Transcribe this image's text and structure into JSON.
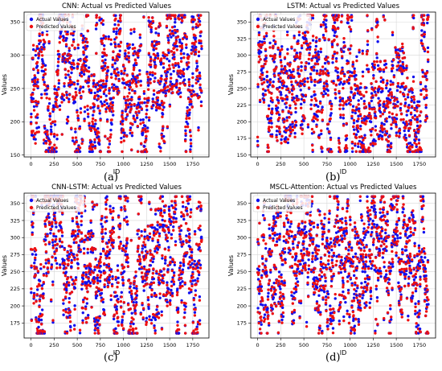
{
  "colors": {
    "actual": "#1010ee",
    "predicted": "#ee1010",
    "grid": "#d8d8d8",
    "frame": "#000000"
  },
  "chart_data": [
    {
      "type": "scatter",
      "panel": "(a)",
      "title": "CNN: Actual vs Predicted Values",
      "xlabel": "ID",
      "ylabel": "Values",
      "xlim": [
        -75,
        1925
      ],
      "ylim": [
        147,
        365
      ],
      "xticks": [
        0,
        250,
        500,
        750,
        1000,
        1250,
        1500,
        1750
      ],
      "yticks": [
        150,
        200,
        250,
        300,
        350
      ],
      "grid": true,
      "legend_position": "top-left",
      "n_points": 1848,
      "value_range": [
        155,
        360
      ],
      "series": [
        {
          "name": "Actual Values",
          "color": "#1010ee"
        },
        {
          "name": "Predicted Values",
          "color": "#ee1010"
        }
      ]
    },
    {
      "type": "scatter",
      "panel": "(b)",
      "title": "LSTM: Actual vs Predicted Values",
      "xlabel": "ID",
      "ylabel": "Values",
      "xlim": [
        -75,
        1925
      ],
      "ylim": [
        147,
        365
      ],
      "xticks": [
        0,
        250,
        500,
        750,
        1000,
        1250,
        1500,
        1750
      ],
      "yticks": [
        150,
        175,
        200,
        225,
        250,
        275,
        300,
        325,
        350
      ],
      "grid": true,
      "legend_position": "top-left",
      "n_points": 1848,
      "value_range": [
        155,
        360
      ],
      "series": [
        {
          "name": "Actual Values",
          "color": "#1010ee"
        },
        {
          "name": "Predicted Values",
          "color": "#ee1010"
        }
      ]
    },
    {
      "type": "scatter",
      "panel": "(c)",
      "title": "CNN-LSTM: Actual vs Predicted Values",
      "xlabel": "ID",
      "ylabel": "Values",
      "xlim": [
        -75,
        1925
      ],
      "ylim": [
        153,
        365
      ],
      "xticks": [
        0,
        250,
        500,
        750,
        1000,
        1250,
        1500,
        1750
      ],
      "yticks": [
        175,
        200,
        225,
        250,
        275,
        300,
        325,
        350
      ],
      "grid": true,
      "legend_position": "top-left",
      "n_points": 1848,
      "value_range": [
        160,
        360
      ],
      "series": [
        {
          "name": "Actual Values",
          "color": "#1010ee"
        },
        {
          "name": "Predicted Values",
          "color": "#ee1010"
        }
      ]
    },
    {
      "type": "scatter",
      "panel": "(d)",
      "title": "MSCL-Attention: Actual vs Predicted Values",
      "xlabel": "ID",
      "ylabel": "Values",
      "xlim": [
        -75,
        1925
      ],
      "ylim": [
        153,
        365
      ],
      "xticks": [
        0,
        250,
        500,
        750,
        1000,
        1250,
        1500,
        1750
      ],
      "yticks": [
        175,
        200,
        225,
        250,
        275,
        300,
        325,
        350
      ],
      "grid": true,
      "legend_position": "top-left",
      "n_points": 1848,
      "value_range": [
        160,
        360
      ],
      "series": [
        {
          "name": "Actual Values",
          "color": "#1010ee"
        },
        {
          "name": "Predicted Values",
          "color": "#ee1010"
        }
      ]
    }
  ]
}
